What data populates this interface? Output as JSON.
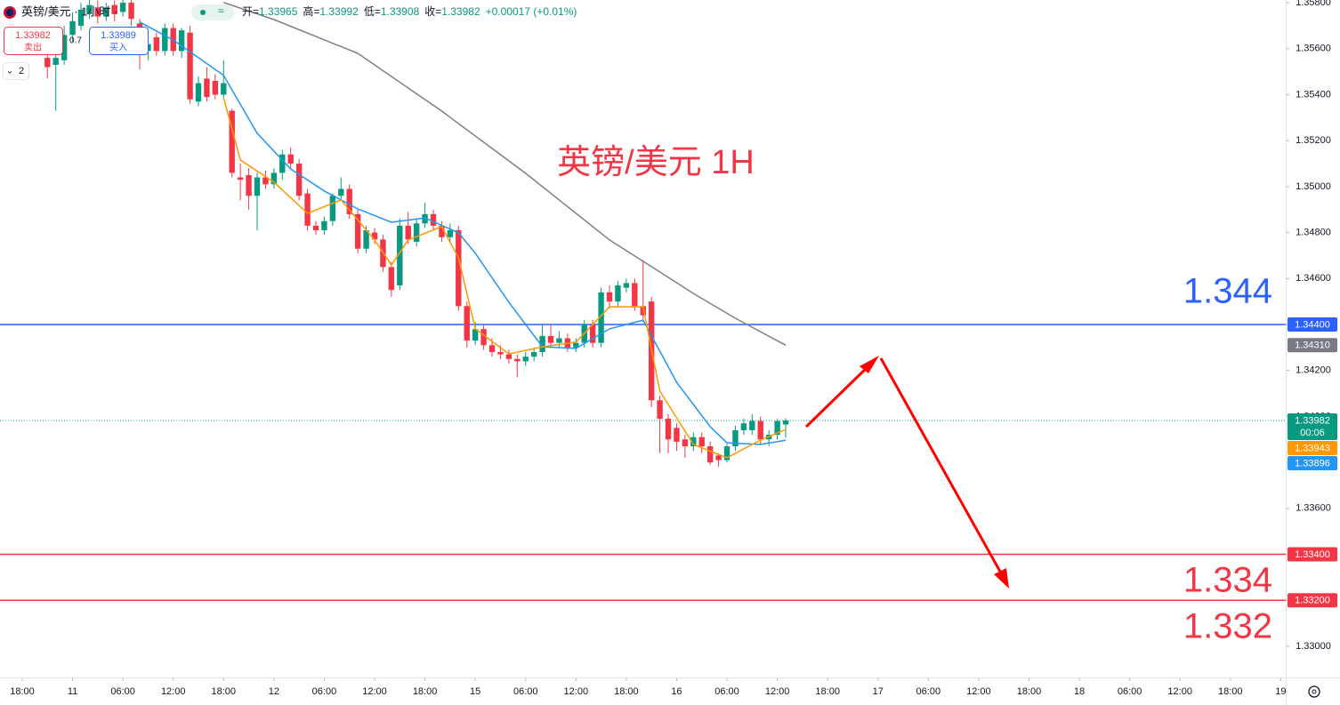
{
  "header": {
    "symbol": "英镑/美元 · 1小时 ·",
    "ohlc": [
      [
        "开=",
        "1.33965"
      ],
      [
        "高=",
        "1.33992"
      ],
      [
        "低=",
        "1.33908"
      ],
      [
        "收=",
        "1.33982"
      ]
    ],
    "change": "+0.00017 (+0.01%)",
    "sell_price": "1.33982",
    "sell_label": "卖出",
    "spread": "0.7",
    "buy_price": "1.33989",
    "buy_label": "买入",
    "collapse": "2"
  },
  "annotations": {
    "title": "英镑/美元 1H",
    "levels": [
      "1.344",
      "1.334",
      "1.332"
    ]
  },
  "chart_data": {
    "type": "candlestick",
    "up_color": "#089981",
    "down_color": "#f23645",
    "xlim": [
      -2.65,
      150.6
    ],
    "ylim": [
      1.32872,
      1.35812
    ],
    "xticks": [
      {
        "value": 0,
        "label": "18:00"
      },
      {
        "value": 6,
        "label": "11"
      },
      {
        "value": 12,
        "label": "06:00"
      },
      {
        "value": 18,
        "label": "12:00"
      },
      {
        "value": 24,
        "label": "18:00"
      },
      {
        "value": 30,
        "label": "12"
      },
      {
        "value": 36,
        "label": "06:00"
      },
      {
        "value": 42,
        "label": "12:00"
      },
      {
        "value": 48,
        "label": "18:00"
      },
      {
        "value": 54,
        "label": "15"
      },
      {
        "value": 60,
        "label": "06:00"
      },
      {
        "value": 66,
        "label": "12:00"
      },
      {
        "value": 72,
        "label": "18:00"
      },
      {
        "value": 78,
        "label": "16"
      },
      {
        "value": 84,
        "label": "06:00"
      },
      {
        "value": 90,
        "label": "12:00"
      },
      {
        "value": 96,
        "label": "18:00"
      },
      {
        "value": 102,
        "label": "17"
      },
      {
        "value": 108,
        "label": "06:00"
      },
      {
        "value": 114,
        "label": "12:00"
      },
      {
        "value": 120,
        "label": "18:00"
      },
      {
        "value": 126,
        "label": "18"
      },
      {
        "value": 132,
        "label": "06:00"
      },
      {
        "value": 138,
        "label": "12:00"
      },
      {
        "value": 144,
        "label": "18:00"
      },
      {
        "value": 150,
        "label": "19"
      }
    ],
    "yticks": [
      {
        "value": 1.358,
        "label": "1.35800"
      },
      {
        "value": 1.356,
        "label": "1.35600"
      },
      {
        "value": 1.354,
        "label": "1.35400"
      },
      {
        "value": 1.352,
        "label": "1.35200"
      },
      {
        "value": 1.35,
        "label": "1.35000"
      },
      {
        "value": 1.348,
        "label": "1.34800"
      },
      {
        "value": 1.346,
        "label": "1.34600"
      },
      {
        "value": 1.344,
        "label": "1.34400"
      },
      {
        "value": 1.342,
        "label": "1.34200"
      },
      {
        "value": 1.34,
        "label": "1.34000"
      },
      {
        "value": 1.338,
        "label": "1.33800"
      },
      {
        "value": 1.336,
        "label": "1.33600"
      },
      {
        "value": 1.334,
        "label": "1.33400"
      },
      {
        "value": 1.332,
        "label": "1.33200"
      },
      {
        "value": 1.33,
        "label": "1.33000"
      }
    ],
    "grid": false,
    "x": [
      3,
      4,
      5,
      6,
      7,
      8,
      9,
      10,
      11,
      12,
      13,
      14,
      15,
      16,
      17,
      18,
      19,
      20,
      21,
      22,
      23,
      24,
      25,
      26,
      27,
      28,
      29,
      30,
      31,
      32,
      33,
      34,
      35,
      36,
      37,
      38,
      39,
      40,
      41,
      42,
      43,
      44,
      45,
      46,
      47,
      48,
      49,
      50,
      51,
      52,
      53,
      54,
      55,
      56,
      57,
      58,
      59,
      60,
      61,
      62,
      63,
      64,
      65,
      66,
      67,
      68,
      69,
      70,
      71,
      72,
      73,
      74,
      75,
      76,
      77,
      78,
      79,
      80,
      81,
      82,
      83,
      84,
      85,
      86,
      87,
      88,
      89,
      90,
      91
    ],
    "open": [
      1.3556,
      1.3553,
      1.3555,
      1.3566,
      1.357,
      1.3575,
      1.3578,
      1.3574,
      1.3579,
      1.3576,
      1.358,
      1.3571,
      1.3559,
      1.3565,
      1.3559,
      1.3569,
      1.3559,
      1.3567,
      1.3537,
      1.3547,
      1.3546,
      1.354,
      1.3533,
      1.3504,
      1.3505,
      1.3496,
      1.3504,
      1.3501,
      1.3506,
      1.3514,
      1.351,
      1.3497,
      1.3483,
      1.3481,
      1.3485,
      1.3496,
      1.3499,
      1.3488,
      1.3473,
      1.348,
      1.3477,
      1.3465,
      1.3457,
      1.3483,
      1.3476,
      1.3484,
      1.3488,
      1.3483,
      1.3478,
      1.3481,
      1.3448,
      1.3433,
      1.3438,
      1.3431,
      1.3428,
      1.3427,
      1.3425,
      1.3424,
      1.3426,
      1.3428,
      1.3435,
      1.3432,
      1.3434,
      1.343,
      1.3432,
      1.344,
      1.3432,
      1.3454,
      1.345,
      1.3456,
      1.3458,
      1.3448,
      1.345,
      1.3407,
      1.3399,
      1.3395,
      1.339,
      1.3387,
      1.3391,
      1.3387,
      1.3383,
      1.3381,
      1.3387,
      1.3394,
      1.3394,
      1.3398,
      1.339,
      1.3392,
      1.33965
    ],
    "high": [
      1.356,
      1.3562,
      1.357,
      1.3576,
      1.358,
      1.3582,
      1.3581,
      1.358,
      1.3581,
      1.3583,
      1.3582,
      1.3573,
      1.3564,
      1.3567,
      1.3571,
      1.3571,
      1.3569,
      1.357,
      1.3548,
      1.3552,
      1.3549,
      1.3555,
      1.3534,
      1.351,
      1.3508,
      1.3506,
      1.3507,
      1.3508,
      1.3516,
      1.3517,
      1.3512,
      1.3499,
      1.3485,
      1.3487,
      1.3497,
      1.3504,
      1.3501,
      1.349,
      1.3483,
      1.3482,
      1.3479,
      1.3467,
      1.3486,
      1.3489,
      1.3486,
      1.3493,
      1.349,
      1.3485,
      1.3484,
      1.3483,
      1.345,
      1.3441,
      1.344,
      1.3434,
      1.3431,
      1.3429,
      1.3427,
      1.3428,
      1.343,
      1.344,
      1.344,
      1.3437,
      1.3436,
      1.3434,
      1.3442,
      1.3442,
      1.3456,
      1.3457,
      1.3459,
      1.346,
      1.346,
      1.3468,
      1.3452,
      1.3409,
      1.3401,
      1.3397,
      1.3392,
      1.3393,
      1.3393,
      1.3389,
      1.3384,
      1.3388,
      1.3396,
      1.3399,
      1.3401,
      1.34,
      1.3394,
      1.3399,
      1.33992
    ],
    "low": [
      1.3547,
      1.3533,
      1.3553,
      1.3563,
      1.3568,
      1.3573,
      1.3571,
      1.3572,
      1.3572,
      1.3574,
      1.357,
      1.3551,
      1.3555,
      1.3557,
      1.3557,
      1.3557,
      1.3556,
      1.3536,
      1.3535,
      1.3537,
      1.3538,
      1.3538,
      1.3504,
      1.3494,
      1.349,
      1.3481,
      1.3499,
      1.3499,
      1.3503,
      1.3508,
      1.3494,
      1.3481,
      1.3479,
      1.3479,
      1.3483,
      1.3494,
      1.3486,
      1.3471,
      1.3471,
      1.3475,
      1.3463,
      1.3452,
      1.3455,
      1.3475,
      1.3474,
      1.3482,
      1.3481,
      1.3476,
      1.3476,
      1.3446,
      1.343,
      1.3431,
      1.3429,
      1.3426,
      1.3425,
      1.3423,
      1.3417,
      1.3422,
      1.3424,
      1.3426,
      1.343,
      1.343,
      1.3428,
      1.3428,
      1.343,
      1.343,
      1.343,
      1.3447,
      1.3448,
      1.3454,
      1.3446,
      1.3441,
      1.3404,
      1.3384,
      1.3384,
      1.3385,
      1.3382,
      1.3385,
      1.3384,
      1.3379,
      1.3378,
      1.338,
      1.3385,
      1.3392,
      1.3392,
      1.3388,
      1.3387,
      1.339,
      1.33908
    ],
    "close": [
      1.3552,
      1.3556,
      1.3566,
      1.3572,
      1.3577,
      1.3579,
      1.3574,
      1.3578,
      1.3575,
      1.358,
      1.3573,
      1.3559,
      1.3562,
      1.3559,
      1.3569,
      1.3559,
      1.3568,
      1.3538,
      1.3545,
      1.3539,
      1.354,
      1.3545,
      1.3506,
      1.3503,
      1.3496,
      1.3504,
      1.3501,
      1.3506,
      1.3514,
      1.351,
      1.3496,
      1.3483,
      1.3481,
      1.3485,
      1.3496,
      1.3499,
      1.3488,
      1.3473,
      1.3481,
      1.3477,
      1.3465,
      1.3455,
      1.3483,
      1.3477,
      1.3484,
      1.3488,
      1.3483,
      1.3478,
      1.3481,
      1.3448,
      1.3433,
      1.3438,
      1.3431,
      1.3428,
      1.3427,
      1.3425,
      1.3424,
      1.3426,
      1.3428,
      1.3435,
      1.3432,
      1.3434,
      1.343,
      1.3432,
      1.344,
      1.3432,
      1.3454,
      1.345,
      1.3457,
      1.3458,
      1.3448,
      1.3444,
      1.3407,
      1.3399,
      1.339,
      1.3389,
      1.3387,
      1.3391,
      1.3387,
      1.338,
      1.3381,
      1.3387,
      1.3394,
      1.3397,
      1.3398,
      1.339,
      1.3392,
      1.3398,
      1.33982
    ],
    "lines": [
      {
        "color": "#808080",
        "x": [
          24,
          30,
          40,
          50,
          60,
          70,
          75,
          80,
          85,
          91
        ],
        "values": [
          1.35801,
          1.35727,
          1.3558,
          1.35329,
          1.35058,
          1.34768,
          1.34652,
          1.34535,
          1.34427,
          1.3431
        ]
      },
      {
        "color": "#2196f3",
        "x": [
          14,
          18,
          24,
          28,
          32,
          36,
          40,
          44,
          48,
          52,
          54,
          58,
          62,
          66,
          70,
          74,
          78,
          82,
          84,
          88,
          91
        ],
        "values": [
          1.35716,
          1.35638,
          1.35484,
          1.35232,
          1.35077,
          1.34981,
          1.34903,
          1.34845,
          1.34864,
          1.34799,
          1.3471,
          1.34497,
          1.34303,
          1.34296,
          1.34381,
          1.34419,
          1.34148,
          1.33955,
          1.33885,
          1.33878,
          1.33896
        ]
      },
      {
        "color": "#ff9800",
        "x": [
          24,
          26,
          30,
          34,
          38,
          42,
          44,
          46,
          50,
          52,
          54,
          58,
          62,
          66,
          70,
          74,
          76,
          80,
          84,
          88,
          91
        ],
        "values": [
          1.35387,
          1.35116,
          1.35019,
          1.34884,
          1.34942,
          1.34768,
          1.34659,
          1.34768,
          1.34826,
          1.3469,
          1.34381,
          1.34272,
          1.34303,
          1.34323,
          1.34477,
          1.34477,
          1.3411,
          1.33878,
          1.3382,
          1.33897,
          1.33943
        ]
      }
    ],
    "price_tags": [
      {
        "value": 1.344,
        "label": "1.34400",
        "color": "#2962ff",
        "line": "solid"
      },
      {
        "value": 1.3431,
        "label": "1.34310",
        "color": "#787b86"
      },
      {
        "value": 1.33982,
        "label": "1.33982",
        "color": "#089981",
        "line": "dotted",
        "countdown": "00:06"
      },
      {
        "value": 1.33943,
        "label": "1.33943",
        "color": "#ff9800"
      },
      {
        "value": 1.33896,
        "label": "1.33896",
        "color": "#2196f3"
      },
      {
        "value": 1.334,
        "label": "1.33400",
        "color": "#f23645",
        "line": "solid"
      },
      {
        "value": 1.332,
        "label": "1.33200",
        "color": "#f23645",
        "line": "solid"
      }
    ]
  }
}
